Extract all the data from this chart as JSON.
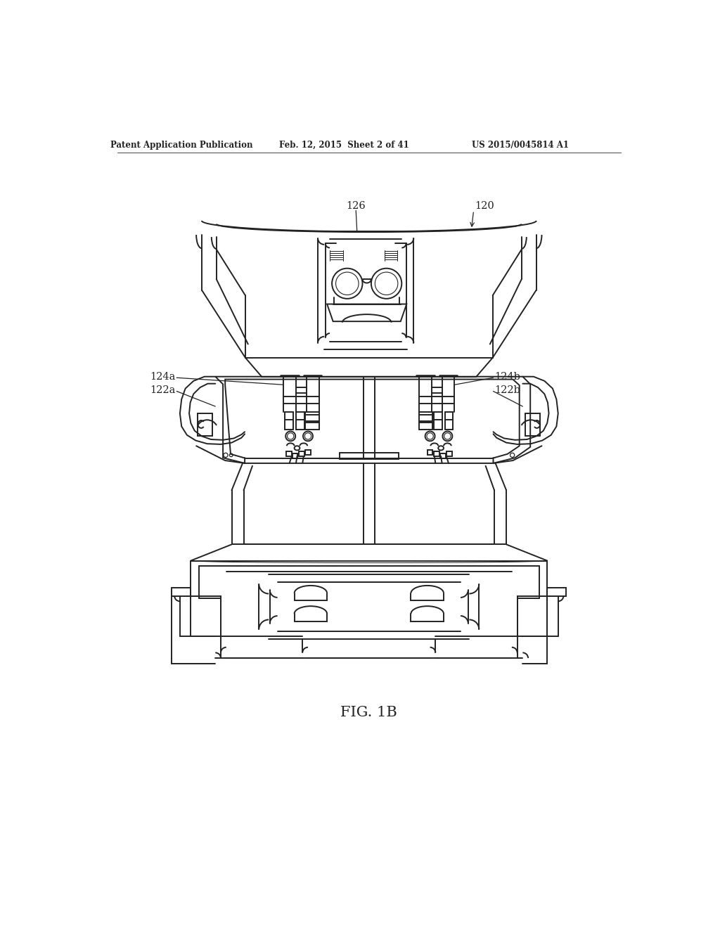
{
  "header_left": "Patent Application Publication",
  "header_center": "Feb. 12, 2015  Sheet 2 of 41",
  "header_right": "US 2015/0045814 A1",
  "fig_label": "FIG. 1B",
  "background": "#ffffff",
  "line_color": "#222222",
  "lw": 1.4
}
